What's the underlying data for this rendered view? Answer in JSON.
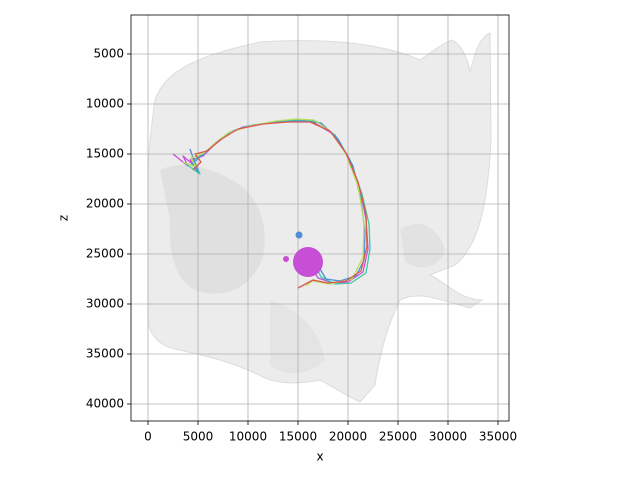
{
  "chart_data": {
    "type": "line",
    "x_label": "x",
    "y_label": "z",
    "xlim": [
      -1700,
      36100
    ],
    "ylim": [
      41700,
      1100
    ],
    "xticks": [
      0,
      5000,
      10000,
      15000,
      20000,
      25000,
      30000,
      35000
    ],
    "yticks": [
      5000,
      10000,
      15000,
      20000,
      25000,
      30000,
      35000,
      40000
    ],
    "grid": true,
    "series": [
      {
        "color": "#c74fd6",
        "x": [
          2500,
          4000,
          3500,
          5000,
          4200,
          5500,
          6500,
          8000,
          9500,
          12000,
          14500,
          16500,
          18500,
          20000,
          21200,
          21800,
          22000,
          21500,
          20000,
          18500,
          17000,
          16200
        ],
        "values": [
          15000,
          16200,
          15200,
          16500,
          15600,
          15200,
          14200,
          13000,
          12300,
          11900,
          11700,
          11800,
          13000,
          15200,
          18500,
          21500,
          24500,
          26800,
          27800,
          27900,
          27400,
          26000
        ]
      },
      {
        "color": "#3fc7a8",
        "x": [
          3800,
          5200,
          4600,
          5800,
          6800,
          8200,
          10000,
          12500,
          15000,
          16800,
          18700,
          20200,
          21400,
          22100,
          22200,
          21800,
          20300,
          18700,
          17300,
          16600
        ],
        "values": [
          16000,
          17000,
          15600,
          14800,
          13900,
          12800,
          12200,
          11800,
          11600,
          11700,
          13100,
          15600,
          19000,
          22000,
          24500,
          26900,
          27900,
          28000,
          27300,
          25800
        ]
      },
      {
        "color": "#4f8fd6",
        "x": [
          4200,
          5000,
          4400,
          6000,
          7000,
          8500,
          10500,
          13000,
          15500,
          17300,
          19000,
          20500,
          21300,
          21700,
          21600,
          20800,
          19200,
          17800,
          16900
        ],
        "values": [
          14500,
          16800,
          16000,
          14600,
          13700,
          12700,
          12100,
          11800,
          11700,
          11900,
          13500,
          16200,
          19600,
          22800,
          25600,
          27200,
          27700,
          27500,
          26000
        ]
      },
      {
        "color": "#b8e05a",
        "x": [
          3500,
          4800,
          4300,
          5600,
          6600,
          8000,
          10200,
          12800,
          14800,
          16600,
          18300,
          19800,
          21000,
          21600,
          21500,
          20400,
          18200,
          16400,
          15800
        ],
        "values": [
          15800,
          16300,
          15400,
          14900,
          14000,
          12900,
          12200,
          11700,
          11500,
          11600,
          12800,
          15000,
          18200,
          21800,
          25300,
          27500,
          28000,
          27700,
          28200
        ]
      },
      {
        "color": "#d9584f",
        "x": [
          4500,
          5300,
          4700,
          5900,
          7200,
          9000,
          11500,
          14000,
          16200,
          18200,
          19800,
          21000,
          21800,
          21900,
          21300,
          19800,
          18000,
          16500,
          15000
        ],
        "values": [
          16600,
          15800,
          15000,
          14700,
          13600,
          12500,
          12000,
          11800,
          11800,
          12700,
          14900,
          17800,
          21000,
          24200,
          26700,
          27700,
          27900,
          27600,
          28400
        ]
      }
    ],
    "somas": {
      "x": [
        16000,
        15100,
        13800
      ],
      "y": [
        25800,
        23100,
        25500
      ],
      "radius": [
        1500,
        350,
        300
      ],
      "color": [
        "#c74fd6",
        "#4f8fd6",
        "#c74fd6"
      ]
    }
  }
}
